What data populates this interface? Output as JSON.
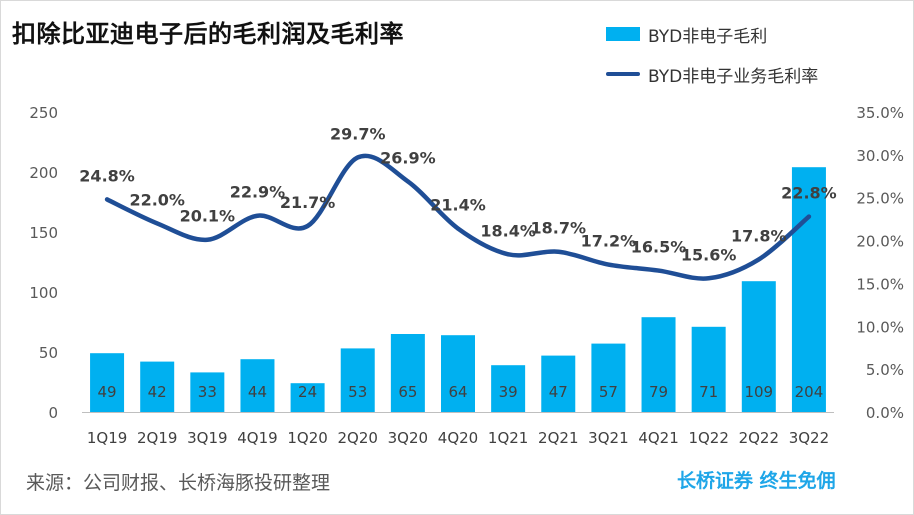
{
  "title": "扣除比亚迪电子后的毛利润及毛利率",
  "legend": {
    "bar_label": "BYD非电子毛利",
    "line_label": "BYD非电子业务毛利率"
  },
  "footer": {
    "source": "来源：公司财报、长桥海豚投研整理",
    "brand": "长桥证券 终生免佣"
  },
  "colors": {
    "bar": "#00b0f0",
    "line": "#1f4e96",
    "brand": "#1fa6e8"
  },
  "chart_data": {
    "type": "bar",
    "categories": [
      "1Q19",
      "2Q19",
      "3Q19",
      "4Q19",
      "1Q20",
      "2Q20",
      "3Q20",
      "4Q20",
      "1Q21",
      "2Q21",
      "3Q21",
      "4Q21",
      "1Q22",
      "2Q22",
      "3Q22"
    ],
    "series": [
      {
        "name": "BYD非电子毛利",
        "type": "bar",
        "axis": "left",
        "values": [
          49,
          42,
          33,
          44,
          24,
          53,
          65,
          64,
          39,
          47,
          57,
          79,
          71,
          109,
          204
        ],
        "labels": [
          "49",
          "42",
          "33",
          "44",
          "24",
          "53",
          "65",
          "64",
          "39",
          "47",
          "57",
          "79",
          "71",
          "109",
          "204"
        ]
      },
      {
        "name": "BYD非电子业务毛利率",
        "type": "line",
        "axis": "right",
        "smooth": true,
        "values": [
          24.8,
          22.0,
          20.1,
          22.9,
          21.7,
          29.7,
          26.9,
          21.4,
          18.4,
          18.7,
          17.2,
          16.5,
          15.6,
          17.8,
          22.8
        ],
        "labels": [
          "24.8%",
          "22.0%",
          "20.1%",
          "22.9%",
          "21.7%",
          "29.7%",
          "26.9%",
          "21.4%",
          "18.4%",
          "18.7%",
          "17.2%",
          "16.5%",
          "15.6%",
          "17.8%",
          "22.8%"
        ]
      }
    ],
    "ylim_left": [
      0,
      250
    ],
    "yticks_left": [
      "0",
      "50",
      "100",
      "150",
      "200",
      "250"
    ],
    "ylim_right": [
      0,
      35
    ],
    "yticks_right": [
      "0.0%",
      "5.0%",
      "10.0%",
      "15.0%",
      "20.0%",
      "25.0%",
      "30.0%",
      "35.0%"
    ],
    "grid": false,
    "legend_position": "top-right"
  }
}
